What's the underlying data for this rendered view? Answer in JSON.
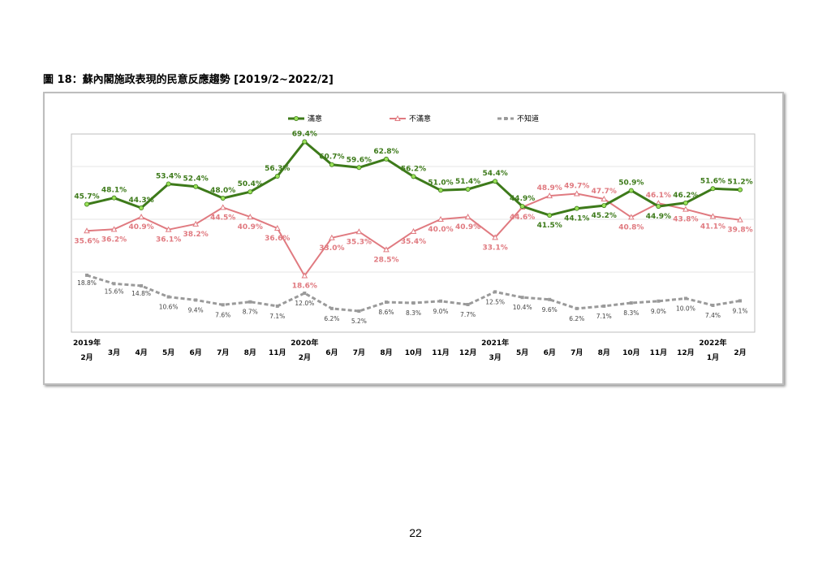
{
  "figure": {
    "title": "圖 18：蘇內閣施政表現的民意反應趨勢  [2019/2~2022/2]"
  },
  "page": {
    "number": "22"
  },
  "colors": {
    "satisfied": "#3d7a1a",
    "satisfied_marker": "#9be35a",
    "dissatisfied": "#e07a80",
    "unknown": "#9a9a9a"
  },
  "chart_data": {
    "type": "line",
    "categories": [
      [
        "2019年",
        "2月"
      ],
      [
        "",
        "3月"
      ],
      [
        "",
        "4月"
      ],
      [
        "",
        "5月"
      ],
      [
        "",
        "6月"
      ],
      [
        "",
        "7月"
      ],
      [
        "",
        "8月"
      ],
      [
        "",
        "11月"
      ],
      [
        "2020年",
        "2月"
      ],
      [
        "",
        "6月"
      ],
      [
        "",
        "7月"
      ],
      [
        "",
        "8月"
      ],
      [
        "",
        "10月"
      ],
      [
        "",
        "11月"
      ],
      [
        "",
        "12月"
      ],
      [
        "2021年",
        "3月"
      ],
      [
        "",
        "5月"
      ],
      [
        "",
        "6月"
      ],
      [
        "",
        "7月"
      ],
      [
        "",
        "8月"
      ],
      [
        "",
        "10月"
      ],
      [
        "",
        "11月"
      ],
      [
        "",
        "12月"
      ],
      [
        "2022年",
        "1月"
      ],
      [
        "",
        "2月"
      ]
    ],
    "ylim": [
      0,
      80
    ],
    "grid": true,
    "legend_position": "top",
    "series": [
      {
        "name": "滿意",
        "values": [
          45.7,
          48.1,
          44.3,
          53.4,
          52.4,
          48.0,
          50.4,
          56.3,
          69.4,
          60.7,
          59.6,
          62.8,
          56.2,
          51.0,
          51.4,
          54.4,
          44.9,
          41.5,
          44.1,
          45.2,
          50.9,
          44.9,
          46.2,
          51.6,
          51.2
        ],
        "labels": [
          "45.7%",
          "48.1%",
          "44.3%",
          "53.4%",
          "52.4%",
          "48.0%",
          "50.4%",
          "56.3%",
          "69.4%",
          "60.7%",
          "59.6%",
          "62.8%",
          "56.2%",
          "51.0%",
          "51.4%",
          "54.4%",
          "44.9%",
          "41.5%",
          "44.1%",
          "45.2%",
          "50.9%",
          "44.9%",
          "46.2%",
          "51.6%",
          "51.2%"
        ]
      },
      {
        "name": "不滿意",
        "values": [
          35.6,
          36.2,
          40.9,
          36.1,
          38.2,
          44.5,
          40.9,
          36.6,
          18.6,
          33.0,
          35.3,
          28.5,
          35.4,
          40.0,
          40.9,
          33.1,
          44.6,
          48.9,
          49.7,
          47.7,
          40.8,
          46.1,
          43.8,
          41.1,
          39.8
        ],
        "labels": [
          "35.6%",
          "36.2%",
          "40.9%",
          "36.1%",
          "38.2%",
          "44.5%",
          "40.9%",
          "36.6%",
          "18.6%",
          "33.0%",
          "35.3%",
          "28.5%",
          "35.4%",
          "40.0%",
          "40.9%",
          "33.1%",
          "44.6%",
          "48.9%",
          "49.7%",
          "47.7%",
          "40.8%",
          "46.1%",
          "43.8%",
          "41.1%",
          "39.8%"
        ]
      },
      {
        "name": "不知道",
        "values": [
          18.8,
          15.6,
          14.8,
          10.6,
          9.4,
          7.6,
          8.7,
          7.1,
          12.0,
          6.2,
          5.2,
          8.6,
          8.3,
          9.0,
          7.7,
          12.5,
          10.4,
          9.6,
          6.2,
          7.1,
          8.3,
          9.0,
          10.0,
          7.4,
          9.1
        ],
        "labels": [
          "18.8%",
          "15.6%",
          "14.8%",
          "10.6%",
          "9.4%",
          "7.6%",
          "8.7%",
          "7.1%",
          "12.0%",
          "6.2%",
          "5.2%",
          "8.6%",
          "8.3%",
          "9.0%",
          "7.7%",
          "12.5%",
          "10.4%",
          "9.6%",
          "6.2%",
          "7.1%",
          "8.3%",
          "9.0%",
          "10.0%",
          "7.4%",
          "9.1%"
        ]
      }
    ]
  }
}
